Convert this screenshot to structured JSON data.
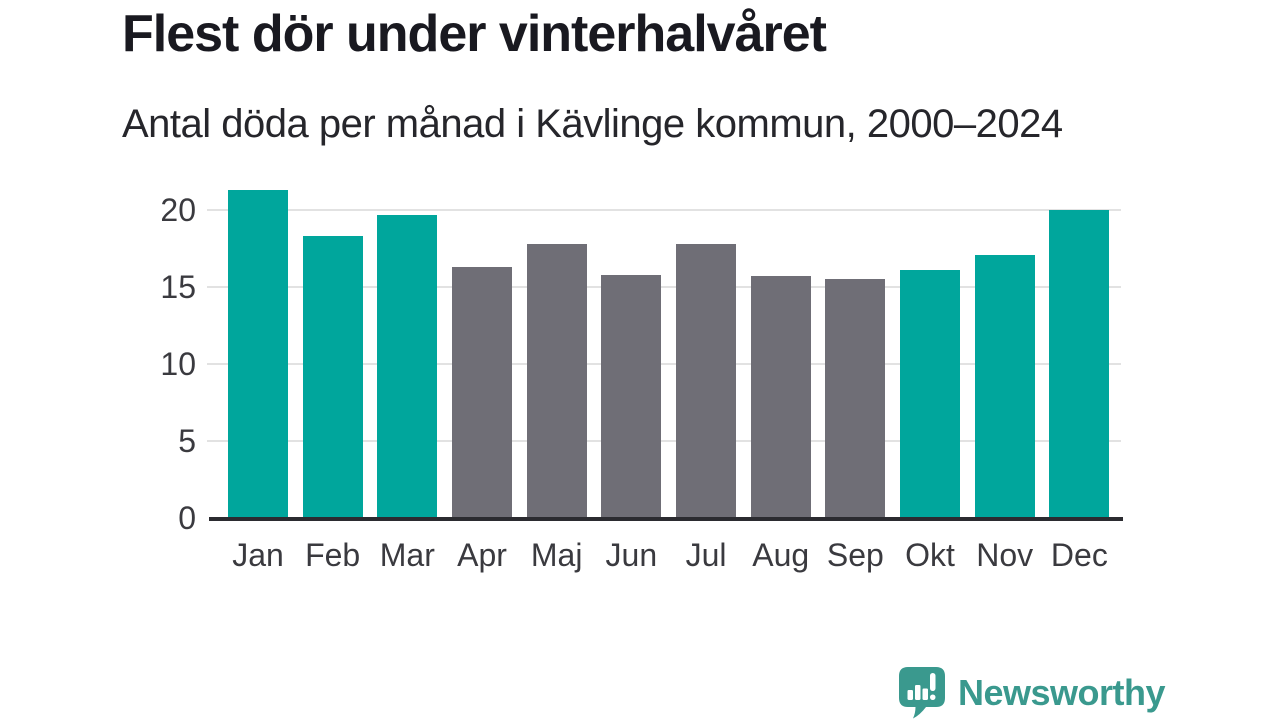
{
  "chart_data": {
    "type": "bar",
    "title": "Flest dör under vinterhalvåret",
    "subtitle": "Antal döda per månad i Kävlinge kommun, 2000–2024",
    "categories": [
      "Jan",
      "Feb",
      "Mar",
      "Apr",
      "Maj",
      "Jun",
      "Jul",
      "Aug",
      "Sep",
      "Okt",
      "Nov",
      "Dec"
    ],
    "values": [
      21.3,
      18.3,
      19.7,
      16.3,
      17.8,
      15.8,
      17.8,
      15.7,
      15.5,
      16.1,
      17.1,
      20.0
    ],
    "bar_colors": [
      "#00A69C",
      "#00A69C",
      "#00A69C",
      "#6F6E76",
      "#6F6E76",
      "#6F6E76",
      "#6F6E76",
      "#6F6E76",
      "#6F6E76",
      "#00A69C",
      "#00A69C",
      "#00A69C"
    ],
    "yticks": [
      0,
      5,
      10,
      15,
      20
    ],
    "ylim": [
      0,
      21.5
    ],
    "xlabel": "",
    "ylabel": "",
    "grid": "horizontal",
    "legend": "none",
    "highlight_color": "#00A69C",
    "base_color": "#6F6E76"
  },
  "branding": {
    "logo_text": "Newsworthy",
    "logo_color": "#3A998E",
    "logo_icon": "bar-chart-speech-bubble-icon"
  },
  "colors": {
    "background": "#FFFFFF",
    "gridline": "#E2E2E2",
    "axis_line": "#2B2B30",
    "title_text": "#191920",
    "tick_text": "#3A3A3F"
  }
}
